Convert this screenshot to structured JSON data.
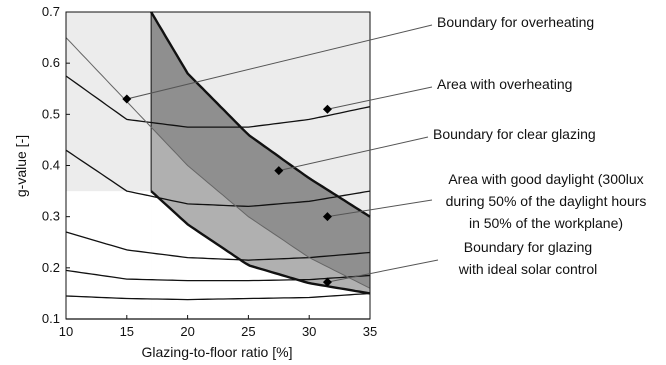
{
  "chart_data": {
    "type": "line",
    "xlabel": "Glazing-to-floor ratio [%]",
    "ylabel": "g-value [-]",
    "xlim": [
      10,
      35
    ],
    "ylim": [
      0.1,
      0.7
    ],
    "xticks": [
      10,
      15,
      20,
      25,
      30,
      35
    ],
    "yticks": [
      0.1,
      0.2,
      0.3,
      0.4,
      0.5,
      0.6,
      0.7
    ],
    "grid": false,
    "colors": {
      "light_area": "#ececec",
      "dark_area": "#8f8f8f",
      "mid_area": "#b0b0b0",
      "lines": "#111111",
      "thin_line": "#666666"
    },
    "contours": [
      {
        "x": [
          10,
          15,
          20,
          25,
          30,
          35
        ],
        "y": [
          0.575,
          0.49,
          0.475,
          0.475,
          0.49,
          0.515
        ]
      },
      {
        "x": [
          10,
          15,
          20,
          25,
          30,
          35
        ],
        "y": [
          0.43,
          0.35,
          0.325,
          0.32,
          0.33,
          0.35
        ]
      },
      {
        "x": [
          10,
          15,
          20,
          25,
          30,
          35
        ],
        "y": [
          0.27,
          0.235,
          0.22,
          0.215,
          0.22,
          0.23
        ]
      },
      {
        "x": [
          10,
          15,
          20,
          25,
          30,
          35
        ],
        "y": [
          0.195,
          0.178,
          0.175,
          0.175,
          0.177,
          0.185
        ]
      },
      {
        "x": [
          10,
          15,
          20,
          25,
          30,
          35
        ],
        "y": [
          0.145,
          0.14,
          0.138,
          0.14,
          0.142,
          0.15
        ]
      },
      {
        "x": [
          10,
          35
        ],
        "y": [
          0.1,
          0.1
        ]
      }
    ],
    "boundary_overheating": {
      "x": [
        17,
        20,
        25,
        30,
        35
      ],
      "y": [
        0.7,
        0.58,
        0.46,
        0.375,
        0.3
      ]
    },
    "boundary_clear_glazing": {
      "x": [
        10,
        15,
        20,
        25,
        30,
        35
      ],
      "y": [
        0.65,
        0.525,
        0.4,
        0.3,
        0.22,
        0.16
      ]
    },
    "boundary_ideal_solar_control": {
      "x": [
        17,
        20,
        25,
        30,
        35
      ],
      "y": [
        0.35,
        0.285,
        0.205,
        0.17,
        0.15
      ]
    },
    "daylight_limit_x": 17,
    "annotations": [
      {
        "text": "Boundary for overheating",
        "point": [
          15,
          0.53
        ],
        "marker": true
      },
      {
        "text": "Area with overheating",
        "point": [
          31.5,
          0.51
        ],
        "marker": true
      },
      {
        "text": "Boundary for clear glazing",
        "point": [
          27.5,
          0.39
        ],
        "marker": true
      },
      {
        "lines": [
          "Area with good daylight (300lux",
          "during 50% of the daylight hours",
          "in 50% of the workplane)"
        ],
        "point": [
          31.5,
          0.3
        ],
        "marker": true
      },
      {
        "lines": [
          "Boundary for glazing",
          "with ideal solar control"
        ],
        "point": [
          31.5,
          0.172
        ],
        "marker": true
      }
    ]
  }
}
